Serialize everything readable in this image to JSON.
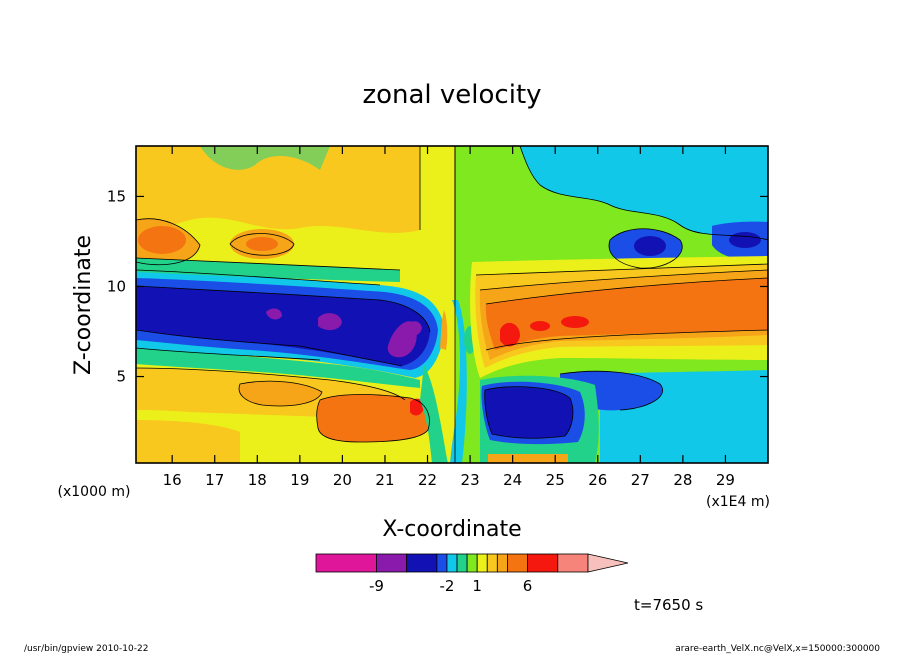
{
  "chart_data": {
    "type": "heatmap",
    "title": "zonal velocity",
    "xlabel": "X-coordinate",
    "ylabel": "Z-coordinate",
    "x_unit_note": "(x1E4 m)",
    "y_unit_note": "(x1000 m)",
    "xlim": [
      15.15,
      30
    ],
    "ylim": [
      0.2,
      17.8
    ],
    "x_ticks": [
      16,
      17,
      18,
      19,
      20,
      21,
      22,
      23,
      24,
      25,
      26,
      27,
      28,
      29
    ],
    "y_ticks": [
      5,
      10,
      15
    ],
    "x_tick_labels": [
      "16",
      "17",
      "18",
      "19",
      "20",
      "21",
      "22",
      "23",
      "24",
      "25",
      "26",
      "27",
      "28",
      "29"
    ],
    "y_tick_labels": [
      "5",
      "10",
      "15"
    ],
    "colorbar": {
      "colors": [
        "#e0169a",
        "#8a1aac",
        "#1212b4",
        "#1a4ee6",
        "#12c8e8",
        "#22d28a",
        "#7fe81e",
        "#ecf01a",
        "#f8c81e",
        "#f6a418",
        "#f47412",
        "#f4180e",
        "#f6847a",
        "#f8c0bc"
      ],
      "boundaries": [
        -15,
        -9,
        -6,
        -3,
        -2,
        -1,
        0,
        1,
        2,
        3,
        4,
        6,
        9,
        12
      ],
      "tick_labels": [
        "-9",
        "-2",
        "1",
        "6"
      ],
      "extend": "max"
    },
    "annotation_time": "t=7650 s",
    "footer_left": "/usr/bin/gpview   2010-10-22",
    "footer_right": "arare-earth_VelX.nc@VelX,x=150000:300000",
    "field_features": [
      {
        "x": 18.7,
        "z": 8.2,
        "value": -7.5
      },
      {
        "x": 20.8,
        "z": 7.4,
        "value": -9.5
      },
      {
        "x": 24.3,
        "z": 2.5,
        "value": -7.0
      },
      {
        "x": 24.8,
        "z": 7.4,
        "value": 7.5
      },
      {
        "x": 27.8,
        "z": 8.8,
        "value": 6.0
      },
      {
        "x": 20.3,
        "z": 2.5,
        "value": 6.5
      },
      {
        "x": 19.2,
        "z": 4.8,
        "value": 4.0
      },
      {
        "x": 15.7,
        "z": 12.4,
        "value": 4.2
      },
      {
        "x": 28.0,
        "z": 4.0,
        "value": -2.8
      },
      {
        "x": 26.9,
        "z": 12.2,
        "value": -4.2
      }
    ]
  }
}
